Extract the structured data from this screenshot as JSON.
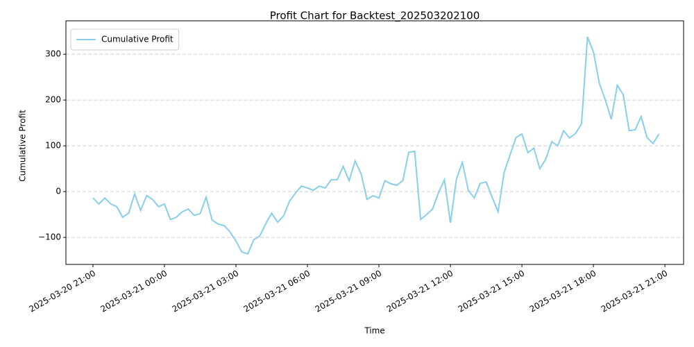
{
  "chart_data": {
    "type": "line",
    "title": "Profit Chart for Backtest_202503202100",
    "x_label": "Time",
    "y_label": "Cumulative Profit",
    "x": [
      "2025-03-20 21:00",
      "2025-03-20 21:15",
      "2025-03-20 21:30",
      "2025-03-20 21:45",
      "2025-03-20 22:00",
      "2025-03-20 22:15",
      "2025-03-20 22:30",
      "2025-03-20 22:45",
      "2025-03-20 23:00",
      "2025-03-20 23:15",
      "2025-03-20 23:30",
      "2025-03-20 23:45",
      "2025-03-21 00:00",
      "2025-03-21 00:15",
      "2025-03-21 00:30",
      "2025-03-21 00:45",
      "2025-03-21 01:00",
      "2025-03-21 01:15",
      "2025-03-21 01:30",
      "2025-03-21 01:45",
      "2025-03-21 02:00",
      "2025-03-21 02:15",
      "2025-03-21 02:30",
      "2025-03-21 02:45",
      "2025-03-21 03:00",
      "2025-03-21 03:15",
      "2025-03-21 03:30",
      "2025-03-21 03:45",
      "2025-03-21 04:00",
      "2025-03-21 04:15",
      "2025-03-21 04:30",
      "2025-03-21 04:45",
      "2025-03-21 05:00",
      "2025-03-21 05:15",
      "2025-03-21 05:30",
      "2025-03-21 05:45",
      "2025-03-21 06:00",
      "2025-03-21 06:15",
      "2025-03-21 06:30",
      "2025-03-21 06:45",
      "2025-03-21 07:00",
      "2025-03-21 07:15",
      "2025-03-21 07:30",
      "2025-03-21 07:45",
      "2025-03-21 08:00",
      "2025-03-21 08:15",
      "2025-03-21 08:30",
      "2025-03-21 08:45",
      "2025-03-21 09:00",
      "2025-03-21 09:15",
      "2025-03-21 09:30",
      "2025-03-21 09:45",
      "2025-03-21 10:00",
      "2025-03-21 10:15",
      "2025-03-21 10:30",
      "2025-03-21 10:45",
      "2025-03-21 11:00",
      "2025-03-21 11:15",
      "2025-03-21 11:30",
      "2025-03-21 11:45",
      "2025-03-21 12:00",
      "2025-03-21 12:15",
      "2025-03-21 12:30",
      "2025-03-21 12:45",
      "2025-03-21 13:00",
      "2025-03-21 13:15",
      "2025-03-21 13:30",
      "2025-03-21 13:45",
      "2025-03-21 14:00",
      "2025-03-21 14:15",
      "2025-03-21 14:30",
      "2025-03-21 14:45",
      "2025-03-21 15:00",
      "2025-03-21 15:15",
      "2025-03-21 15:30",
      "2025-03-21 15:45",
      "2025-03-21 16:00",
      "2025-03-21 16:15",
      "2025-03-21 16:30",
      "2025-03-21 16:45",
      "2025-03-21 17:00",
      "2025-03-21 17:15",
      "2025-03-21 17:30",
      "2025-03-21 17:45",
      "2025-03-21 18:00",
      "2025-03-21 18:15",
      "2025-03-21 18:30",
      "2025-03-21 18:45",
      "2025-03-21 19:00",
      "2025-03-21 19:15",
      "2025-03-21 19:30",
      "2025-03-21 19:45",
      "2025-03-21 20:00",
      "2025-03-21 20:15",
      "2025-03-21 20:30",
      "2025-03-21 20:45"
    ],
    "series": [
      {
        "name": "Cumulative Profit",
        "color": "#87ceeb",
        "values": [
          -14,
          -27,
          -14,
          -27,
          -33,
          -56,
          -47,
          -5,
          -41,
          -9,
          -17,
          -33,
          -27,
          -61,
          -56,
          -44,
          -38,
          -52,
          -48,
          -12,
          -62,
          -71,
          -74,
          -88,
          -108,
          -132,
          -136,
          -105,
          -97,
          -70,
          -47,
          -67,
          -53,
          -21,
          -3,
          12,
          8,
          3,
          12,
          8,
          26,
          26,
          55,
          24,
          67,
          39,
          -17,
          -9,
          -14,
          24,
          17,
          14,
          24,
          86,
          88,
          -61,
          -50,
          -38,
          -2,
          26,
          -68,
          27,
          64,
          3,
          -14,
          18,
          21,
          -12,
          -44,
          41,
          80,
          118,
          126,
          85,
          95,
          50,
          71,
          109,
          100,
          133,
          117,
          127,
          148,
          338,
          305,
          236,
          200,
          158,
          232,
          212,
          133,
          135,
          164,
          118,
          105,
          126
        ]
      }
    ],
    "xlim": [
      "2025-03-20 19:52",
      "2025-03-21 21:47"
    ],
    "xticks": [
      "2025-03-20 21:00",
      "2025-03-21 00:00",
      "2025-03-21 03:00",
      "2025-03-21 06:00",
      "2025-03-21 09:00",
      "2025-03-21 12:00",
      "2025-03-21 15:00",
      "2025-03-21 18:00",
      "2025-03-21 21:00"
    ],
    "ylim": [
      -159,
      373
    ],
    "yticks": [
      {
        "value": -100,
        "label": "−100"
      },
      0,
      100,
      200,
      300
    ],
    "grid": "y",
    "legend": "upper left"
  }
}
